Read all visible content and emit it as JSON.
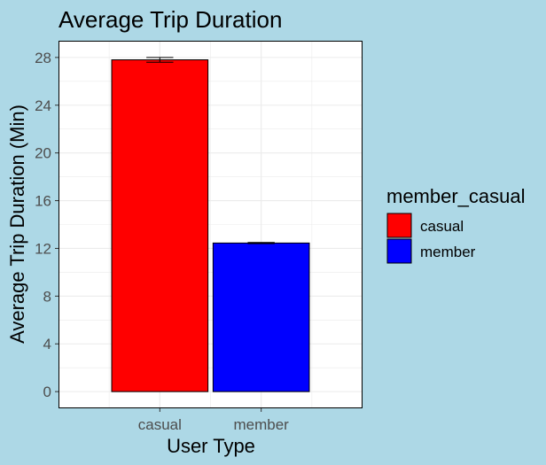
{
  "chart_data": {
    "type": "bar",
    "title": "Average Trip Duration",
    "xlabel": "User Type",
    "ylabel": "Average Trip Duration (Min)",
    "categories": [
      "casual",
      "member"
    ],
    "values": [
      27.8,
      12.45
    ],
    "error_bars": [
      {
        "low": 27.6,
        "high": 28.0
      },
      {
        "low": 12.4,
        "high": 12.5
      }
    ],
    "ylim": [
      -1.4,
      29.4
    ],
    "yticks": [
      "0",
      "4",
      "8",
      "12",
      "16",
      "20",
      "24",
      "28"
    ],
    "grid": true,
    "legend": {
      "title": "member_casual",
      "placement": "right",
      "entries": [
        {
          "label": "casual",
          "color": "#ff0000"
        },
        {
          "label": "member",
          "color": "#0000ff"
        }
      ]
    },
    "colors": {
      "casual": "#ff0000",
      "member": "#0000ff",
      "background": "#add8e6",
      "panel": "#ffffff",
      "grid": "#ebebeb"
    }
  }
}
